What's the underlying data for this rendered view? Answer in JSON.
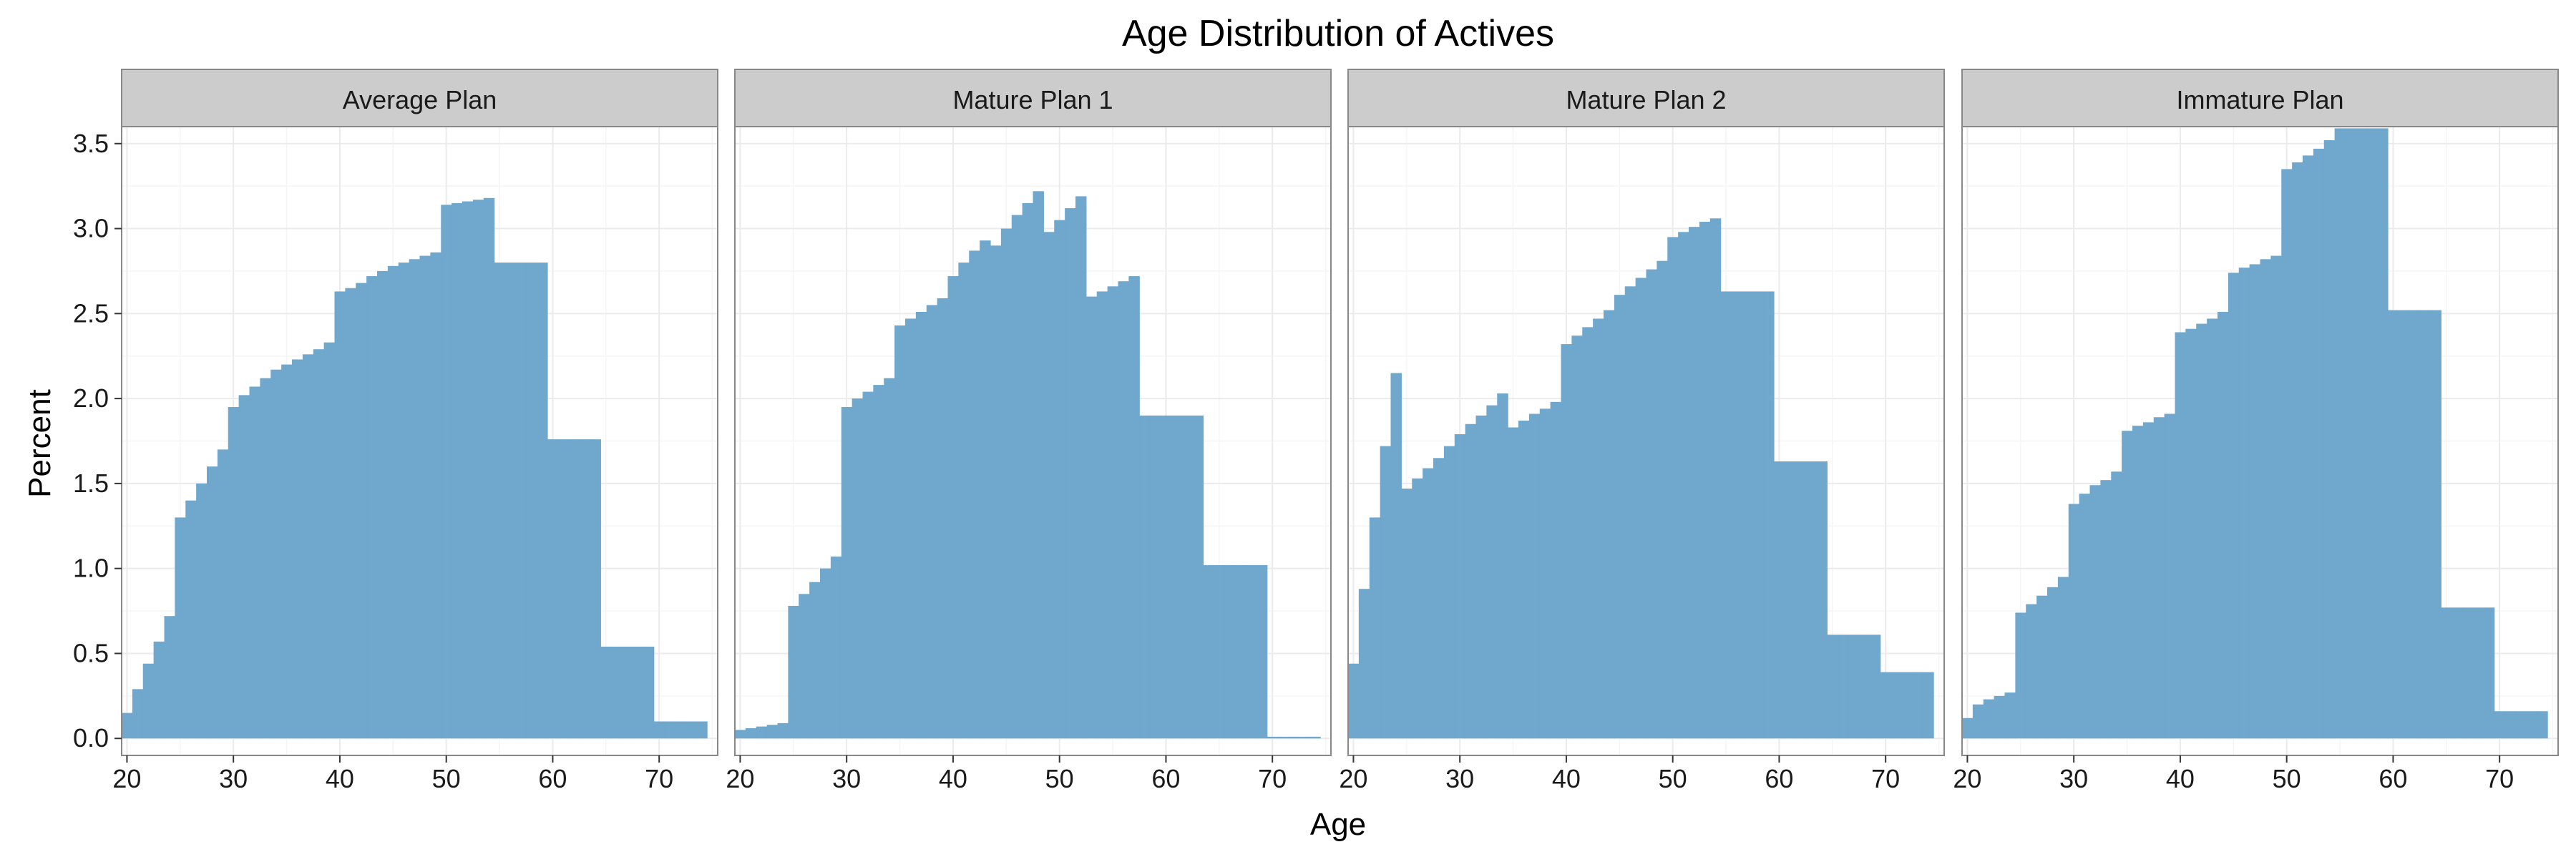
{
  "chart_data": {
    "type": "bar",
    "title": "Age Distribution of Actives",
    "xlabel": "Age",
    "ylabel": "Percent",
    "xlim": [
      19.5,
      75.5
    ],
    "ylim": [
      -0.1,
      3.6
    ],
    "x_ticks": [
      "20",
      "30",
      "40",
      "50",
      "60",
      "70"
    ],
    "x_tick_values": [
      20,
      30,
      40,
      50,
      60,
      70
    ],
    "y_ticks": [
      "0.0",
      "0.5",
      "1.0",
      "1.5",
      "2.0",
      "2.5",
      "3.0",
      "3.5"
    ],
    "y_tick_values": [
      0,
      0.5,
      1.0,
      1.5,
      2.0,
      2.5,
      3.0,
      3.5
    ],
    "grid": true,
    "bar_color": "#6fa7cd",
    "strip_color": "#cccccc",
    "categories": [
      20,
      21,
      22,
      23,
      24,
      25,
      26,
      27,
      28,
      29,
      30,
      31,
      32,
      33,
      34,
      35,
      36,
      37,
      38,
      39,
      40,
      41,
      42,
      43,
      44,
      45,
      46,
      47,
      48,
      49,
      50,
      51,
      52,
      53,
      54,
      55,
      56,
      57,
      58,
      59,
      60,
      61,
      62,
      63,
      64,
      65,
      66,
      67,
      68,
      69,
      70,
      71,
      72,
      73,
      74
    ],
    "panels": [
      {
        "strip": "Average Plan",
        "values": [
          0.15,
          0.29,
          0.44,
          0.57,
          0.72,
          1.3,
          1.4,
          1.5,
          1.6,
          1.7,
          1.95,
          2.02,
          2.07,
          2.12,
          2.17,
          2.2,
          2.23,
          2.26,
          2.29,
          2.33,
          2.63,
          2.65,
          2.68,
          2.72,
          2.75,
          2.78,
          2.8,
          2.82,
          2.84,
          2.86,
          3.14,
          3.15,
          3.16,
          3.17,
          3.18,
          2.8,
          2.8,
          2.8,
          2.8,
          2.8,
          1.76,
          1.76,
          1.76,
          1.76,
          1.76,
          0.54,
          0.54,
          0.54,
          0.54,
          0.54,
          0.1,
          0.1,
          0.1,
          0.1,
          0.1
        ]
      },
      {
        "strip": "Mature Plan 1",
        "values": [
          0.05,
          0.06,
          0.07,
          0.08,
          0.09,
          0.78,
          0.85,
          0.92,
          1.0,
          1.07,
          1.95,
          2.0,
          2.04,
          2.08,
          2.12,
          2.43,
          2.47,
          2.51,
          2.55,
          2.59,
          2.72,
          2.8,
          2.87,
          2.93,
          2.9,
          3.0,
          3.08,
          3.15,
          3.22,
          2.98,
          3.05,
          3.12,
          3.19,
          2.6,
          2.63,
          2.66,
          2.69,
          2.72,
          1.9,
          1.9,
          1.9,
          1.9,
          1.9,
          1.9,
          1.02,
          1.02,
          1.02,
          1.02,
          1.02,
          1.02,
          0.01,
          0.01,
          0.01,
          0.01,
          0.01
        ]
      },
      {
        "strip": "Mature Plan 2",
        "values": [
          0.44,
          0.88,
          1.3,
          1.72,
          2.15,
          1.47,
          1.53,
          1.59,
          1.65,
          1.72,
          1.79,
          1.85,
          1.9,
          1.96,
          2.03,
          1.83,
          1.87,
          1.91,
          1.94,
          1.98,
          2.32,
          2.37,
          2.42,
          2.47,
          2.52,
          2.61,
          2.66,
          2.71,
          2.76,
          2.81,
          2.95,
          2.98,
          3.01,
          3.04,
          3.06,
          2.63,
          2.63,
          2.63,
          2.63,
          2.63,
          1.63,
          1.63,
          1.63,
          1.63,
          1.63,
          0.61,
          0.61,
          0.61,
          0.61,
          0.61,
          0.39,
          0.39,
          0.39,
          0.39,
          0.39
        ]
      },
      {
        "strip": "Immature Plan",
        "values": [
          0.12,
          0.2,
          0.23,
          0.25,
          0.27,
          0.74,
          0.79,
          0.84,
          0.89,
          0.95,
          1.38,
          1.44,
          1.49,
          1.52,
          1.57,
          1.81,
          1.84,
          1.86,
          1.89,
          1.91,
          2.39,
          2.41,
          2.44,
          2.47,
          2.51,
          2.74,
          2.77,
          2.79,
          2.82,
          2.84,
          3.35,
          3.39,
          3.43,
          3.47,
          3.52,
          3.59,
          3.59,
          3.59,
          3.59,
          3.59,
          2.52,
          2.52,
          2.52,
          2.52,
          2.52,
          0.77,
          0.77,
          0.77,
          0.77,
          0.77,
          0.16,
          0.16,
          0.16,
          0.16,
          0.16
        ]
      }
    ]
  }
}
